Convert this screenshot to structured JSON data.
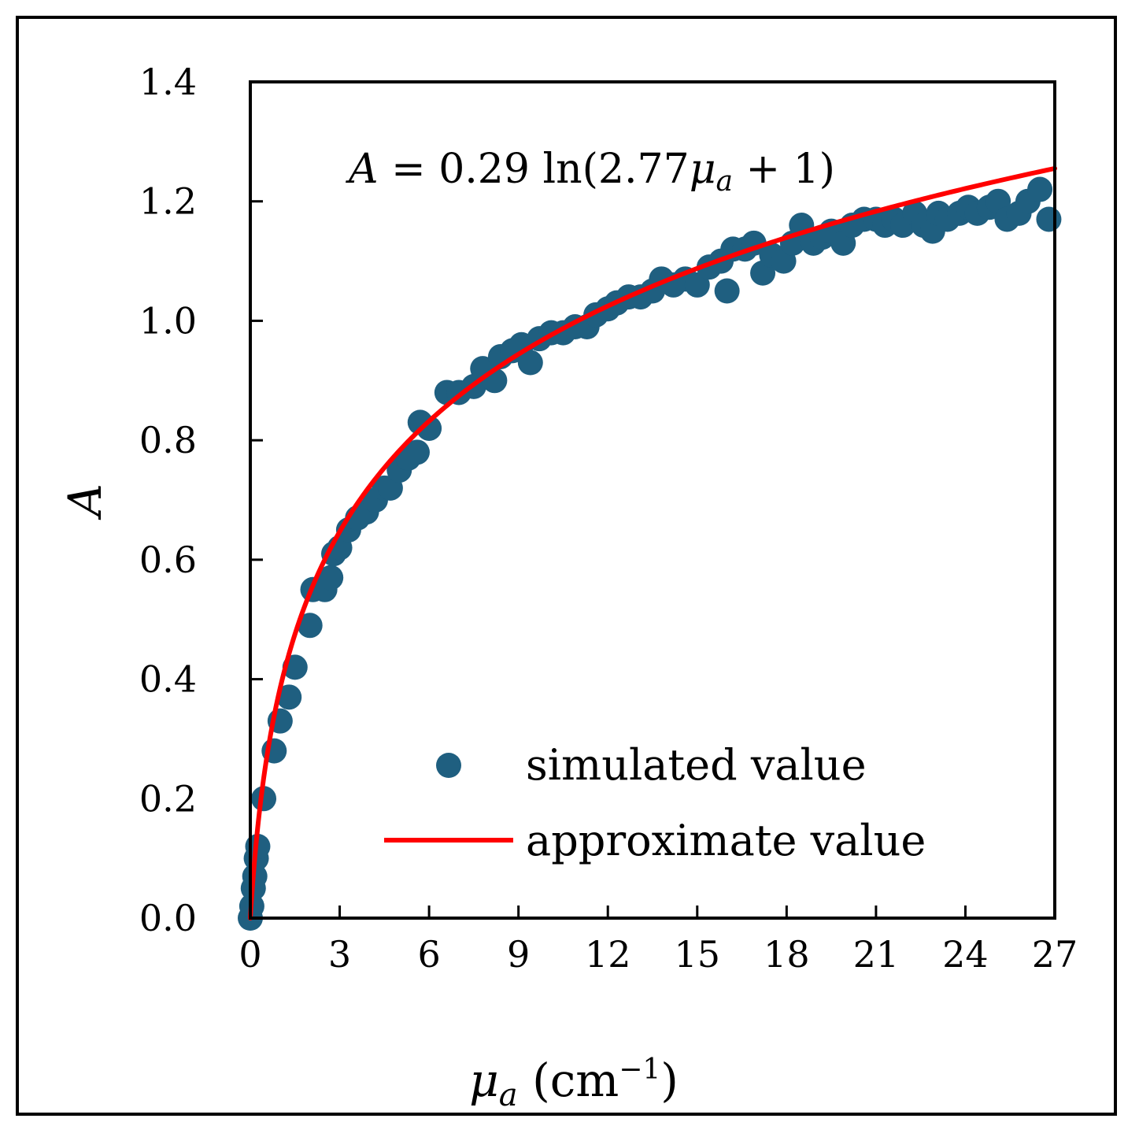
{
  "chart_data": {
    "type": "scatter",
    "title": "",
    "xlabel": "μa (cm−1)",
    "xlabel_parts": {
      "symbol": "μ",
      "subscript": "a",
      "unit_open": " (cm",
      "superscript": "−1",
      "unit_close": ")"
    },
    "ylabel": "A",
    "xlim": [
      0,
      27
    ],
    "ylim": [
      0,
      1.4
    ],
    "xticks": [
      "0",
      "3",
      "6",
      "9",
      "12",
      "15",
      "18",
      "21",
      "24",
      "27"
    ],
    "yticks": [
      "0.0",
      "0.2",
      "0.4",
      "0.6",
      "0.8",
      "1.0",
      "1.2",
      "1.4"
    ],
    "equation": {
      "text": "A = 0.29 ln(2.77μa + 1)",
      "lhs": "A",
      "mid": " = 0.29 ln(2.77",
      "symbol": "μ",
      "subscript": "a",
      "tail": " + 1)"
    },
    "legend": {
      "position": "lower-right",
      "entries": [
        "simulated value",
        "approximate value"
      ]
    },
    "colors": {
      "simulated": "#1f5f80",
      "approximate": "#ff0000"
    },
    "series": [
      {
        "name": "simulated value",
        "kind": "scatter",
        "points": [
          [
            0.0,
            0.0
          ],
          [
            0.05,
            0.02
          ],
          [
            0.1,
            0.05
          ],
          [
            0.15,
            0.07
          ],
          [
            0.2,
            0.1
          ],
          [
            0.25,
            0.12
          ],
          [
            0.45,
            0.2
          ],
          [
            0.8,
            0.28
          ],
          [
            1.0,
            0.33
          ],
          [
            1.3,
            0.37
          ],
          [
            1.5,
            0.42
          ],
          [
            2.0,
            0.49
          ],
          [
            2.1,
            0.55
          ],
          [
            2.5,
            0.55
          ],
          [
            2.7,
            0.57
          ],
          [
            2.8,
            0.61
          ],
          [
            3.0,
            0.62
          ],
          [
            3.3,
            0.65
          ],
          [
            3.6,
            0.67
          ],
          [
            3.9,
            0.68
          ],
          [
            4.2,
            0.7
          ],
          [
            4.5,
            0.72
          ],
          [
            4.7,
            0.72
          ],
          [
            5.0,
            0.75
          ],
          [
            5.3,
            0.77
          ],
          [
            5.6,
            0.78
          ],
          [
            5.7,
            0.83
          ],
          [
            6.0,
            0.82
          ],
          [
            6.6,
            0.88
          ],
          [
            7.0,
            0.88
          ],
          [
            7.5,
            0.89
          ],
          [
            7.8,
            0.92
          ],
          [
            8.2,
            0.9
          ],
          [
            8.4,
            0.94
          ],
          [
            8.8,
            0.95
          ],
          [
            9.1,
            0.96
          ],
          [
            9.4,
            0.93
          ],
          [
            9.7,
            0.97
          ],
          [
            10.1,
            0.98
          ],
          [
            10.5,
            0.98
          ],
          [
            10.9,
            0.99
          ],
          [
            11.3,
            0.99
          ],
          [
            11.6,
            1.01
          ],
          [
            12.0,
            1.02
          ],
          [
            12.3,
            1.03
          ],
          [
            12.7,
            1.04
          ],
          [
            13.1,
            1.04
          ],
          [
            13.5,
            1.05
          ],
          [
            13.8,
            1.07
          ],
          [
            14.2,
            1.06
          ],
          [
            14.6,
            1.07
          ],
          [
            15.0,
            1.06
          ],
          [
            15.4,
            1.09
          ],
          [
            15.8,
            1.1
          ],
          [
            16.0,
            1.05
          ],
          [
            16.2,
            1.12
          ],
          [
            16.6,
            1.12
          ],
          [
            16.9,
            1.13
          ],
          [
            17.2,
            1.08
          ],
          [
            17.5,
            1.11
          ],
          [
            17.9,
            1.1
          ],
          [
            18.2,
            1.13
          ],
          [
            18.5,
            1.16
          ],
          [
            18.9,
            1.13
          ],
          [
            19.2,
            1.14
          ],
          [
            19.5,
            1.15
          ],
          [
            19.9,
            1.13
          ],
          [
            20.2,
            1.16
          ],
          [
            20.6,
            1.17
          ],
          [
            21.0,
            1.17
          ],
          [
            21.3,
            1.16
          ],
          [
            21.6,
            1.17
          ],
          [
            21.9,
            1.16
          ],
          [
            22.3,
            1.18
          ],
          [
            22.6,
            1.16
          ],
          [
            22.9,
            1.15
          ],
          [
            23.1,
            1.18
          ],
          [
            23.4,
            1.17
          ],
          [
            23.8,
            1.18
          ],
          [
            24.1,
            1.19
          ],
          [
            24.4,
            1.18
          ],
          [
            24.8,
            1.19
          ],
          [
            25.1,
            1.2
          ],
          [
            25.4,
            1.17
          ],
          [
            25.8,
            1.18
          ],
          [
            26.1,
            1.2
          ],
          [
            26.5,
            1.22
          ],
          [
            26.8,
            1.17
          ]
        ]
      },
      {
        "name": "approximate value",
        "kind": "line",
        "function": "0.29*ln(2.77*x+1)",
        "a": 0.29,
        "b": 2.77,
        "domain": [
          0,
          27
        ]
      }
    ]
  }
}
